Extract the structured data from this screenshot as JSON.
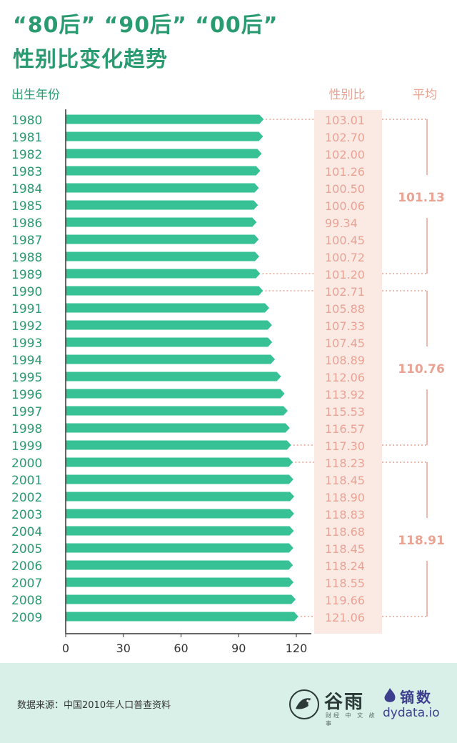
{
  "title": {
    "line1": "“80后” “90后” “00后”",
    "line2": "性别比变化趋势"
  },
  "colors": {
    "bar": "#37c195",
    "accent": "#e8a393",
    "highlight": "#fbe9e4",
    "title": "#2a9b71",
    "axis": "#333333",
    "footer": "#d9f0e8"
  },
  "chart_data": {
    "type": "bar",
    "orientation": "horizontal",
    "col_headers": {
      "year": "出生年份",
      "ratio": "性别比",
      "avg": "平均"
    },
    "categories": [
      "1980",
      "1981",
      "1982",
      "1983",
      "1984",
      "1985",
      "1986",
      "1987",
      "1988",
      "1989",
      "1990",
      "1991",
      "1992",
      "1993",
      "1994",
      "1995",
      "1996",
      "1997",
      "1998",
      "1999",
      "2000",
      "2001",
      "2002",
      "2003",
      "2004",
      "2005",
      "2006",
      "2007",
      "2008",
      "2009"
    ],
    "values": [
      103.01,
      102.7,
      102.0,
      101.26,
      100.5,
      100.06,
      99.34,
      100.45,
      100.72,
      101.2,
      102.71,
      105.88,
      107.33,
      107.45,
      108.89,
      112.06,
      113.92,
      115.53,
      116.57,
      117.3,
      118.23,
      118.45,
      118.9,
      118.83,
      118.68,
      118.45,
      118.24,
      118.55,
      119.66,
      121.06
    ],
    "value_labels": [
      "103.01",
      "102.70",
      "102.00",
      "101.26",
      "100.50",
      "100.06",
      "99.34",
      "100.45",
      "100.72",
      "101.20",
      "102.71",
      "105.88",
      "107.33",
      "107.45",
      "108.89",
      "112.06",
      "113.92",
      "115.53",
      "116.57",
      "117.30",
      "118.23",
      "118.45",
      "118.90",
      "118.83",
      "118.68",
      "118.45",
      "118.24",
      "118.55",
      "119.66",
      "121.06"
    ],
    "xlim": [
      0,
      120
    ],
    "xticks": [
      "0",
      "30",
      "60",
      "90",
      "120"
    ],
    "groups": [
      {
        "start": 0,
        "end": 9,
        "average": "101.13"
      },
      {
        "start": 10,
        "end": 19,
        "average": "110.76"
      },
      {
        "start": 20,
        "end": 29,
        "average": "118.91"
      }
    ]
  },
  "footer": {
    "source": "数据来源：中国2010年人口普查资料",
    "logo1_name": "谷雨",
    "logo1_sub": "财经 中 文 故事",
    "logo2_name": "镝数",
    "logo2_domain": "dydata.io"
  }
}
